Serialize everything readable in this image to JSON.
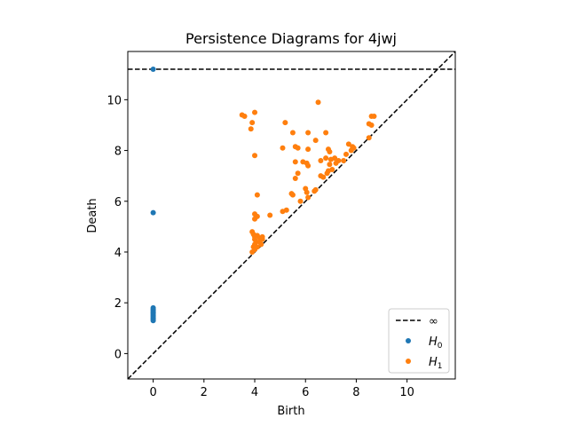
{
  "chart_data": {
    "type": "scatter",
    "title": "Persistence Diagrams for 4jwj",
    "xlabel": "Birth",
    "ylabel": "Death",
    "xlim": [
      -1.0,
      11.9
    ],
    "ylim": [
      -1.0,
      11.9
    ],
    "xticks": [
      0,
      2,
      4,
      6,
      8,
      10
    ],
    "yticks": [
      0,
      2,
      4,
      6,
      8,
      10
    ],
    "infinity_value": 11.2,
    "grid": false,
    "legend_position": "bottom-right",
    "legend": [
      {
        "label": "∞",
        "marker": "dashed-line",
        "color": "#000000"
      },
      {
        "label": "H",
        "sub": "0",
        "marker": "dot",
        "color": "#1f77b4"
      },
      {
        "label": "H",
        "sub": "1",
        "marker": "dot",
        "color": "#ff7f0e"
      }
    ],
    "series": [
      {
        "color": "#1f77b4",
        "points": [
          [
            0,
            11.2
          ],
          [
            0,
            5.55
          ],
          [
            0,
            1.8
          ],
          [
            0,
            1.75
          ],
          [
            0,
            1.7
          ],
          [
            0,
            1.65
          ],
          [
            0,
            1.6
          ],
          [
            0,
            1.55
          ],
          [
            0,
            1.5
          ],
          [
            0,
            1.45
          ],
          [
            0,
            1.4
          ],
          [
            0,
            1.35
          ],
          [
            0,
            1.3
          ]
        ]
      },
      {
        "color": "#ff7f0e",
        "points": [
          [
            3.5,
            9.4
          ],
          [
            3.6,
            9.35
          ],
          [
            3.9,
            9.1
          ],
          [
            3.85,
            8.85
          ],
          [
            4.0,
            9.5
          ],
          [
            4.0,
            7.8
          ],
          [
            4.1,
            6.25
          ],
          [
            4.0,
            5.5
          ],
          [
            4.0,
            5.3
          ],
          [
            4.1,
            5.4
          ],
          [
            3.9,
            4.8
          ],
          [
            3.95,
            4.7
          ],
          [
            4.0,
            4.6
          ],
          [
            4.0,
            4.5
          ],
          [
            4.05,
            4.4
          ],
          [
            4.0,
            4.3
          ],
          [
            3.95,
            4.2
          ],
          [
            4.0,
            4.1
          ],
          [
            3.9,
            4.0
          ],
          [
            4.1,
            4.65
          ],
          [
            4.2,
            4.55
          ],
          [
            4.3,
            4.6
          ],
          [
            4.2,
            4.4
          ],
          [
            4.25,
            4.3
          ],
          [
            4.1,
            4.2
          ],
          [
            4.3,
            4.5
          ],
          [
            4.6,
            5.45
          ],
          [
            5.1,
            5.6
          ],
          [
            5.25,
            5.65
          ],
          [
            5.2,
            9.1
          ],
          [
            5.5,
            8.7
          ],
          [
            5.1,
            8.1
          ],
          [
            5.6,
            8.15
          ],
          [
            5.7,
            8.1
          ],
          [
            5.6,
            7.55
          ],
          [
            5.9,
            7.55
          ],
          [
            6.05,
            7.5
          ],
          [
            6.1,
            8.7
          ],
          [
            6.1,
            8.05
          ],
          [
            6.1,
            7.4
          ],
          [
            5.7,
            7.1
          ],
          [
            5.6,
            6.9
          ],
          [
            5.45,
            6.3
          ],
          [
            5.5,
            6.25
          ],
          [
            6.0,
            6.5
          ],
          [
            6.05,
            6.35
          ],
          [
            6.4,
            6.45
          ],
          [
            6.35,
            6.4
          ],
          [
            6.1,
            6.15
          ],
          [
            5.8,
            6.0
          ],
          [
            6.5,
            9.9
          ],
          [
            6.4,
            8.4
          ],
          [
            6.8,
            8.7
          ],
          [
            6.9,
            8.05
          ],
          [
            6.95,
            7.95
          ],
          [
            6.6,
            7.6
          ],
          [
            6.8,
            7.7
          ],
          [
            7.0,
            7.65
          ],
          [
            6.95,
            7.45
          ],
          [
            7.05,
            7.25
          ],
          [
            6.9,
            7.2
          ],
          [
            6.85,
            7.1
          ],
          [
            6.6,
            7.0
          ],
          [
            6.7,
            6.95
          ],
          [
            7.15,
            7.7
          ],
          [
            7.3,
            7.6
          ],
          [
            7.2,
            7.5
          ],
          [
            7.5,
            7.6
          ],
          [
            7.6,
            7.85
          ],
          [
            7.7,
            8.25
          ],
          [
            7.85,
            8.15
          ],
          [
            7.8,
            8.0
          ],
          [
            7.9,
            8.1
          ],
          [
            8.5,
            8.5
          ],
          [
            8.6,
            9.0
          ],
          [
            8.6,
            9.35
          ],
          [
            8.7,
            9.35
          ],
          [
            8.5,
            9.05
          ]
        ]
      }
    ]
  }
}
